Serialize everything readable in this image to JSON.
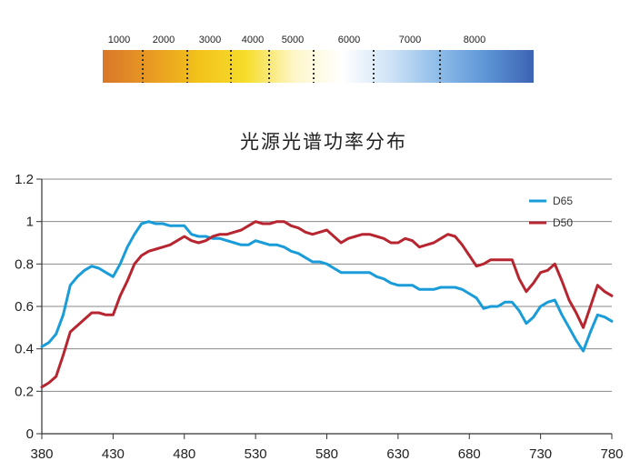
{
  "color_scale": {
    "labels": [
      "1000",
      "2000",
      "3000",
      "4000",
      "5000",
      "6000",
      "7000",
      "8000"
    ],
    "gradient_colors": [
      "#d9772a",
      "#e89a22",
      "#f2c21a",
      "#f6dd2c",
      "#fdf6c8",
      "#ffffff",
      "#cfe3f6",
      "#8fbde9",
      "#5d95d6",
      "#3d63b3"
    ]
  },
  "chart_data": {
    "type": "line",
    "title": "光源光谱功率分布",
    "xlabel": "",
    "ylabel": "",
    "xlim": [
      380,
      780
    ],
    "ylim": [
      0,
      1.2
    ],
    "x_ticks": [
      "380",
      "430",
      "480",
      "530",
      "580",
      "630",
      "680",
      "730",
      "780"
    ],
    "y_ticks": [
      "0",
      "0.2",
      "0.4",
      "0.6",
      "0.8",
      "1",
      "1.2"
    ],
    "grid": "horizontal",
    "legend_position": "top-right",
    "series": [
      {
        "name": "D65",
        "color": "#199cd8",
        "x": [
          380,
          385,
          390,
          395,
          400,
          405,
          410,
          415,
          420,
          425,
          430,
          435,
          440,
          445,
          450,
          455,
          460,
          465,
          470,
          475,
          480,
          485,
          490,
          495,
          500,
          505,
          510,
          515,
          520,
          525,
          530,
          535,
          540,
          545,
          550,
          555,
          560,
          565,
          570,
          575,
          580,
          585,
          590,
          595,
          600,
          605,
          610,
          615,
          620,
          625,
          630,
          635,
          640,
          645,
          650,
          655,
          660,
          665,
          670,
          675,
          680,
          685,
          690,
          695,
          700,
          705,
          710,
          715,
          720,
          725,
          730,
          735,
          740,
          745,
          750,
          755,
          760,
          765,
          770,
          775,
          780
        ],
        "values": [
          0.41,
          0.43,
          0.47,
          0.56,
          0.7,
          0.74,
          0.77,
          0.79,
          0.78,
          0.76,
          0.74,
          0.8,
          0.88,
          0.94,
          0.99,
          1.0,
          0.99,
          0.99,
          0.98,
          0.98,
          0.98,
          0.94,
          0.93,
          0.93,
          0.92,
          0.92,
          0.91,
          0.9,
          0.89,
          0.89,
          0.91,
          0.9,
          0.89,
          0.89,
          0.88,
          0.86,
          0.85,
          0.83,
          0.81,
          0.81,
          0.8,
          0.78,
          0.76,
          0.76,
          0.76,
          0.76,
          0.76,
          0.74,
          0.73,
          0.71,
          0.7,
          0.7,
          0.7,
          0.68,
          0.68,
          0.68,
          0.69,
          0.69,
          0.69,
          0.68,
          0.66,
          0.64,
          0.59,
          0.6,
          0.6,
          0.62,
          0.62,
          0.58,
          0.52,
          0.55,
          0.6,
          0.62,
          0.63,
          0.56,
          0.5,
          0.44,
          0.39,
          0.48,
          0.56,
          0.55,
          0.53
        ]
      },
      {
        "name": "D50",
        "color": "#b72630",
        "x": [
          380,
          385,
          390,
          395,
          400,
          405,
          410,
          415,
          420,
          425,
          430,
          435,
          440,
          445,
          450,
          455,
          460,
          465,
          470,
          475,
          480,
          485,
          490,
          495,
          500,
          505,
          510,
          515,
          520,
          525,
          530,
          535,
          540,
          545,
          550,
          555,
          560,
          565,
          570,
          575,
          580,
          585,
          590,
          595,
          600,
          605,
          610,
          615,
          620,
          625,
          630,
          635,
          640,
          645,
          650,
          655,
          660,
          665,
          670,
          675,
          680,
          685,
          690,
          695,
          700,
          705,
          710,
          715,
          720,
          725,
          730,
          735,
          740,
          745,
          750,
          755,
          760,
          765,
          770,
          775,
          780
        ],
        "values": [
          0.22,
          0.24,
          0.27,
          0.37,
          0.48,
          0.51,
          0.54,
          0.57,
          0.57,
          0.56,
          0.56,
          0.65,
          0.72,
          0.8,
          0.84,
          0.86,
          0.87,
          0.88,
          0.89,
          0.91,
          0.93,
          0.91,
          0.9,
          0.91,
          0.93,
          0.94,
          0.94,
          0.95,
          0.96,
          0.98,
          1.0,
          0.99,
          0.99,
          1.0,
          1.0,
          0.98,
          0.97,
          0.95,
          0.94,
          0.95,
          0.96,
          0.93,
          0.9,
          0.92,
          0.93,
          0.94,
          0.94,
          0.93,
          0.92,
          0.9,
          0.9,
          0.92,
          0.91,
          0.88,
          0.89,
          0.9,
          0.92,
          0.94,
          0.93,
          0.89,
          0.84,
          0.79,
          0.8,
          0.82,
          0.82,
          0.82,
          0.82,
          0.73,
          0.67,
          0.71,
          0.76,
          0.77,
          0.8,
          0.72,
          0.63,
          0.57,
          0.5,
          0.6,
          0.7,
          0.67,
          0.65
        ]
      }
    ]
  }
}
